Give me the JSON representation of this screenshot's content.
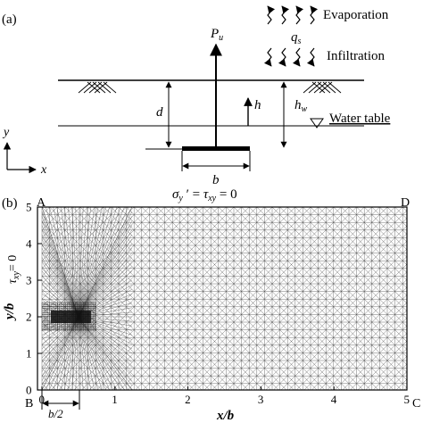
{
  "panel_a": {
    "label": "(a)",
    "load": "P",
    "load_sub": "u",
    "evaporation": "Evaporation",
    "flux": "q",
    "flux_sub": "s",
    "infiltration": "Infiltration",
    "depth": "d",
    "height": "h",
    "water_height": "h",
    "water_height_sub": "w",
    "water_table": "Water table",
    "width": "b",
    "axis_y": "y",
    "axis_x": "x"
  },
  "panel_b": {
    "label": "(b)",
    "corner_a": "A",
    "corner_b": "B",
    "corner_c": "C",
    "corner_d": "D",
    "top_condition": {
      "sigma": "σ",
      "sigma_sub": "y",
      "prime_eq": " ′ = ",
      "tau": "τ",
      "tau_sub": "xy",
      "rest": " = 0"
    },
    "left_condition": {
      "tau": "τ",
      "tau_sub": "xy",
      "rest": "= 0"
    },
    "half_width": "b/2",
    "x_axis_label": "x/b",
    "y_axis_label": "y/b",
    "x_ticks": [
      "0",
      "1",
      "2",
      "3",
      "4",
      "5"
    ],
    "y_ticks": [
      "0",
      "1",
      "2",
      "3",
      "4",
      "5"
    ],
    "x_range": [
      0,
      5
    ],
    "y_range": [
      0,
      5
    ],
    "footing_y": 2,
    "footing_half_width": 0.5
  }
}
